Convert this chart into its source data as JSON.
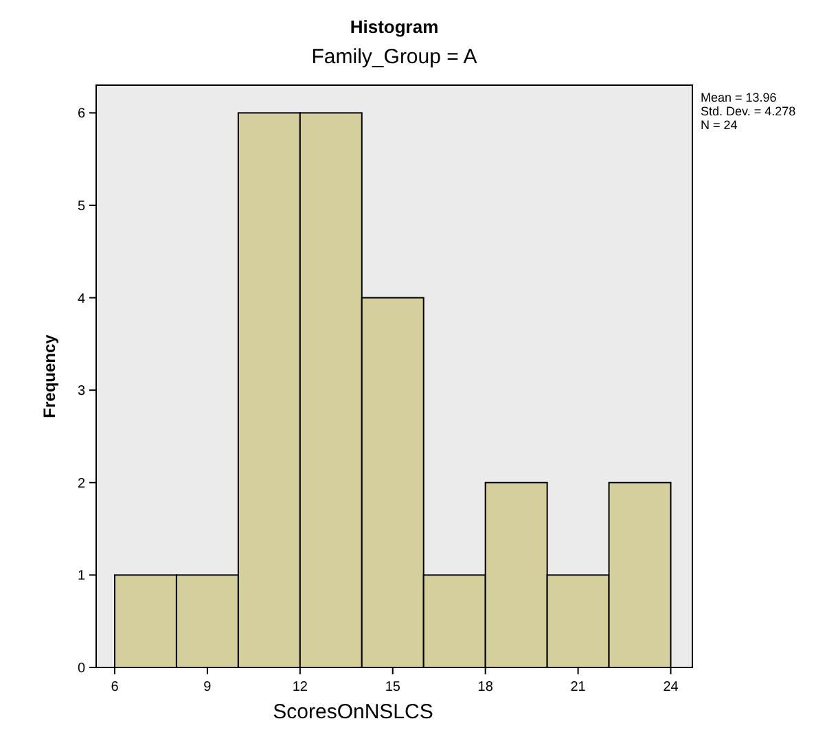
{
  "chart_data": {
    "type": "histogram",
    "title": "Histogram",
    "subtitle": "Family_Group = A",
    "xlabel": "ScoresOnNSLCS",
    "ylabel": "Frequency",
    "bins": [
      6,
      8,
      10,
      12,
      14,
      16,
      18,
      20,
      22,
      24
    ],
    "values": [
      1,
      1,
      6,
      6,
      4,
      1,
      2,
      1,
      2
    ],
    "color": "#d5cf9e",
    "xlim": [
      5.4,
      24.7
    ],
    "xticks": [
      6,
      9,
      12,
      15,
      18,
      21,
      24
    ],
    "ylim": [
      0,
      6.3
    ],
    "yticks": [
      0,
      1,
      2,
      3,
      4,
      5,
      6
    ],
    "grid": false,
    "annotations": [
      "Mean = 13.96",
      "Std. Dev. = 4.278",
      "N = 24"
    ]
  }
}
